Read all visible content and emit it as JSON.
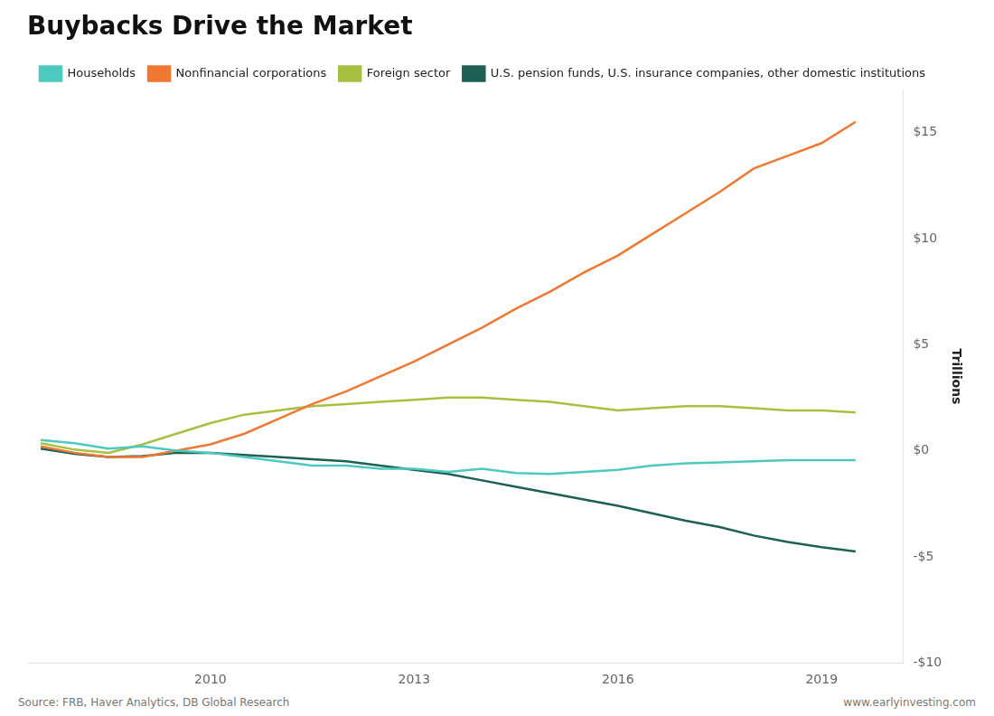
{
  "chart_data": {
    "type": "line",
    "title": "Buybacks Drive the Market",
    "ylabel": "Trillions",
    "annotations": [
      "Source: FRB, Haver Analytics, DB Global Research",
      "www.earlyinvesting.com"
    ],
    "x": [
      2007.5,
      2008.0,
      2008.5,
      2009.0,
      2009.5,
      2010.0,
      2010.5,
      2011.0,
      2011.5,
      2012.0,
      2012.5,
      2013.0,
      2013.5,
      2014.0,
      2014.5,
      2015.0,
      2015.5,
      2016.0,
      2016.5,
      2017.0,
      2017.5,
      2018.0,
      2018.5,
      2019.0,
      2019.5
    ],
    "series": [
      {
        "name": "Households",
        "color": "#4ec9bf",
        "values": [
          0.5,
          0.35,
          0.1,
          0.2,
          0.0,
          -0.1,
          -0.3,
          -0.5,
          -0.7,
          -0.7,
          -0.85,
          -0.85,
          -1.0,
          -0.85,
          -1.05,
          -1.1,
          -1.0,
          -0.9,
          -0.7,
          -0.6,
          -0.55,
          -0.5,
          -0.45,
          -0.45,
          -0.45
        ]
      },
      {
        "name": "Nonfinancial corporations",
        "color": "#f07832",
        "values": [
          0.2,
          -0.1,
          -0.3,
          -0.3,
          0.0,
          0.3,
          0.8,
          1.5,
          2.2,
          2.8,
          3.5,
          4.2,
          5.0,
          5.8,
          6.7,
          7.5,
          8.4,
          9.2,
          10.2,
          11.2,
          12.2,
          13.3,
          13.9,
          14.5,
          15.5
        ]
      },
      {
        "name": "Foreign sector",
        "color": "#a8c040",
        "values": [
          0.35,
          0.05,
          -0.1,
          0.3,
          0.8,
          1.3,
          1.7,
          1.9,
          2.1,
          2.2,
          2.3,
          2.4,
          2.5,
          2.5,
          2.4,
          2.3,
          2.1,
          1.9,
          2.0,
          2.1,
          2.1,
          2.0,
          1.9,
          1.9,
          1.8
        ]
      },
      {
        "name": "U.S. pension funds, U.S. insurance companies, other domestic institutions",
        "color": "#1d6055",
        "values": [
          0.1,
          -0.15,
          -0.3,
          -0.25,
          -0.1,
          -0.1,
          -0.2,
          -0.3,
          -0.4,
          -0.5,
          -0.7,
          -0.9,
          -1.1,
          -1.4,
          -1.7,
          -2.0,
          -2.3,
          -2.6,
          -2.95,
          -3.3,
          -3.6,
          -4.0,
          -4.3,
          -4.55,
          -4.75
        ]
      }
    ],
    "xlim": [
      2007.3,
      2020.2
    ],
    "xticks": [
      2010,
      2013,
      2016,
      2019
    ],
    "ylim": [
      -10,
      17
    ],
    "yticks": [
      {
        "value": -10,
        "label": "-$10"
      },
      {
        "value": -5,
        "label": "-$5"
      },
      {
        "value": 0,
        "label": "$0"
      },
      {
        "value": 5,
        "label": "$5"
      },
      {
        "value": 10,
        "label": "$10"
      },
      {
        "value": 15,
        "label": "$15"
      }
    ],
    "grid": false,
    "legend": "top"
  }
}
